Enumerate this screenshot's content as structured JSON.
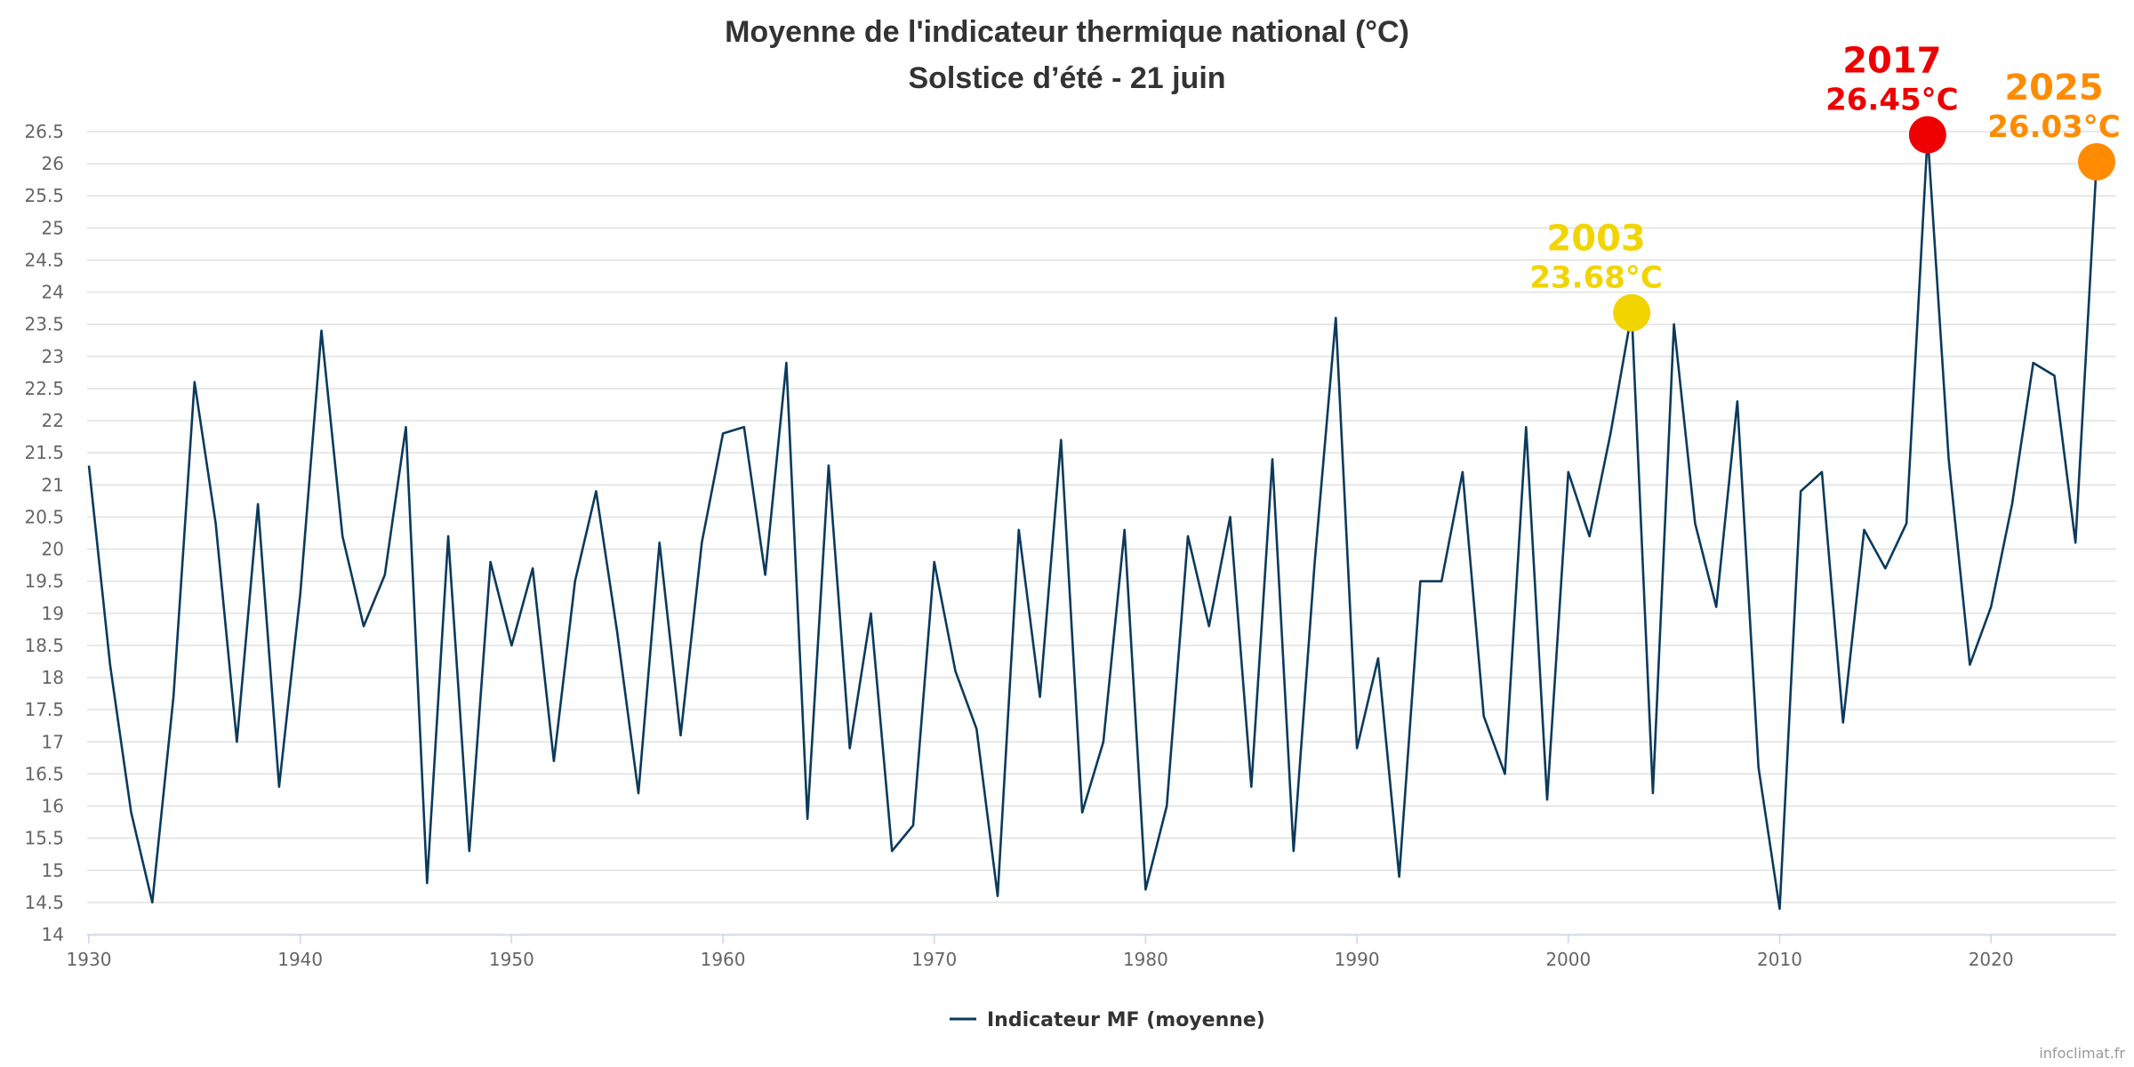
{
  "chart_data": {
    "type": "line",
    "title": "Moyenne de l'indicateur thermique national (°C)",
    "subtitle": "Solstice d’été - 21 juin",
    "xlabel": "",
    "ylabel": "",
    "ylim": [
      14,
      26.5
    ],
    "xlim": [
      1930,
      2025
    ],
    "grid": true,
    "legend_position": "bottom-center",
    "y_ticks": [
      "14",
      "14.5",
      "15",
      "15.5",
      "16",
      "16.5",
      "17",
      "17.5",
      "18",
      "18.5",
      "19",
      "19.5",
      "20",
      "20.5",
      "21",
      "21.5",
      "22",
      "22.5",
      "23",
      "23.5",
      "24",
      "24.5",
      "25",
      "25.5",
      "26",
      "26.5"
    ],
    "x_ticks": [
      "1930",
      "1940",
      "1950",
      "1960",
      "1970",
      "1980",
      "1990",
      "2000",
      "2010",
      "2020"
    ],
    "series": [
      {
        "name": "Indicateur MF (moyenne)",
        "color": "#0b3a5c",
        "x": [
          1930,
          1931,
          1932,
          1933,
          1934,
          1935,
          1936,
          1937,
          1938,
          1939,
          1940,
          1941,
          1942,
          1943,
          1944,
          1945,
          1946,
          1947,
          1948,
          1949,
          1950,
          1951,
          1952,
          1953,
          1954,
          1955,
          1956,
          1957,
          1958,
          1959,
          1960,
          1961,
          1962,
          1963,
          1964,
          1965,
          1966,
          1967,
          1968,
          1969,
          1970,
          1971,
          1972,
          1973,
          1974,
          1975,
          1976,
          1977,
          1978,
          1979,
          1980,
          1981,
          1982,
          1983,
          1984,
          1985,
          1986,
          1987,
          1988,
          1989,
          1990,
          1991,
          1992,
          1993,
          1994,
          1995,
          1996,
          1997,
          1998,
          1999,
          2000,
          2001,
          2002,
          2003,
          2004,
          2005,
          2006,
          2007,
          2008,
          2009,
          2010,
          2011,
          2012,
          2013,
          2014,
          2015,
          2016,
          2017,
          2018,
          2019,
          2020,
          2021,
          2022,
          2023,
          2024,
          2025
        ],
        "values": [
          21.3,
          18.2,
          15.9,
          14.5,
          17.7,
          22.6,
          20.4,
          17.0,
          20.7,
          16.3,
          19.3,
          23.4,
          20.2,
          18.8,
          19.6,
          21.9,
          14.8,
          20.2,
          15.3,
          19.8,
          18.5,
          19.7,
          16.7,
          19.5,
          20.9,
          18.7,
          16.2,
          20.1,
          17.1,
          20.1,
          21.8,
          21.9,
          19.6,
          22.9,
          15.8,
          21.3,
          16.9,
          19.0,
          15.3,
          15.7,
          19.8,
          18.1,
          17.2,
          14.6,
          20.3,
          17.7,
          21.7,
          15.9,
          17.0,
          20.3,
          14.7,
          16.0,
          20.2,
          18.8,
          20.5,
          16.3,
          21.4,
          15.3,
          19.8,
          23.6,
          16.9,
          18.3,
          14.9,
          19.5,
          19.5,
          21.2,
          17.4,
          16.5,
          21.9,
          16.1,
          21.2,
          20.2,
          21.8,
          23.68,
          16.2,
          23.5,
          20.4,
          19.1,
          22.3,
          16.6,
          14.4,
          20.9,
          21.2,
          17.3,
          20.3,
          19.7,
          20.4,
          26.45,
          21.4,
          18.2,
          19.1,
          20.7,
          22.9,
          22.7,
          20.1,
          26.03
        ]
      }
    ],
    "annotations": [
      {
        "year": "2003",
        "value_label": "23.68°C",
        "x": 2003,
        "y": 23.68,
        "color": "#f2d400"
      },
      {
        "year": "2017",
        "value_label": "26.45°C",
        "x": 2017,
        "y": 26.45,
        "color": "#ee0000"
      },
      {
        "year": "2025",
        "value_label": "26.03°C",
        "x": 2025,
        "y": 26.03,
        "color": "#ff8c00"
      }
    ]
  },
  "credit": "infoclimat.fr"
}
